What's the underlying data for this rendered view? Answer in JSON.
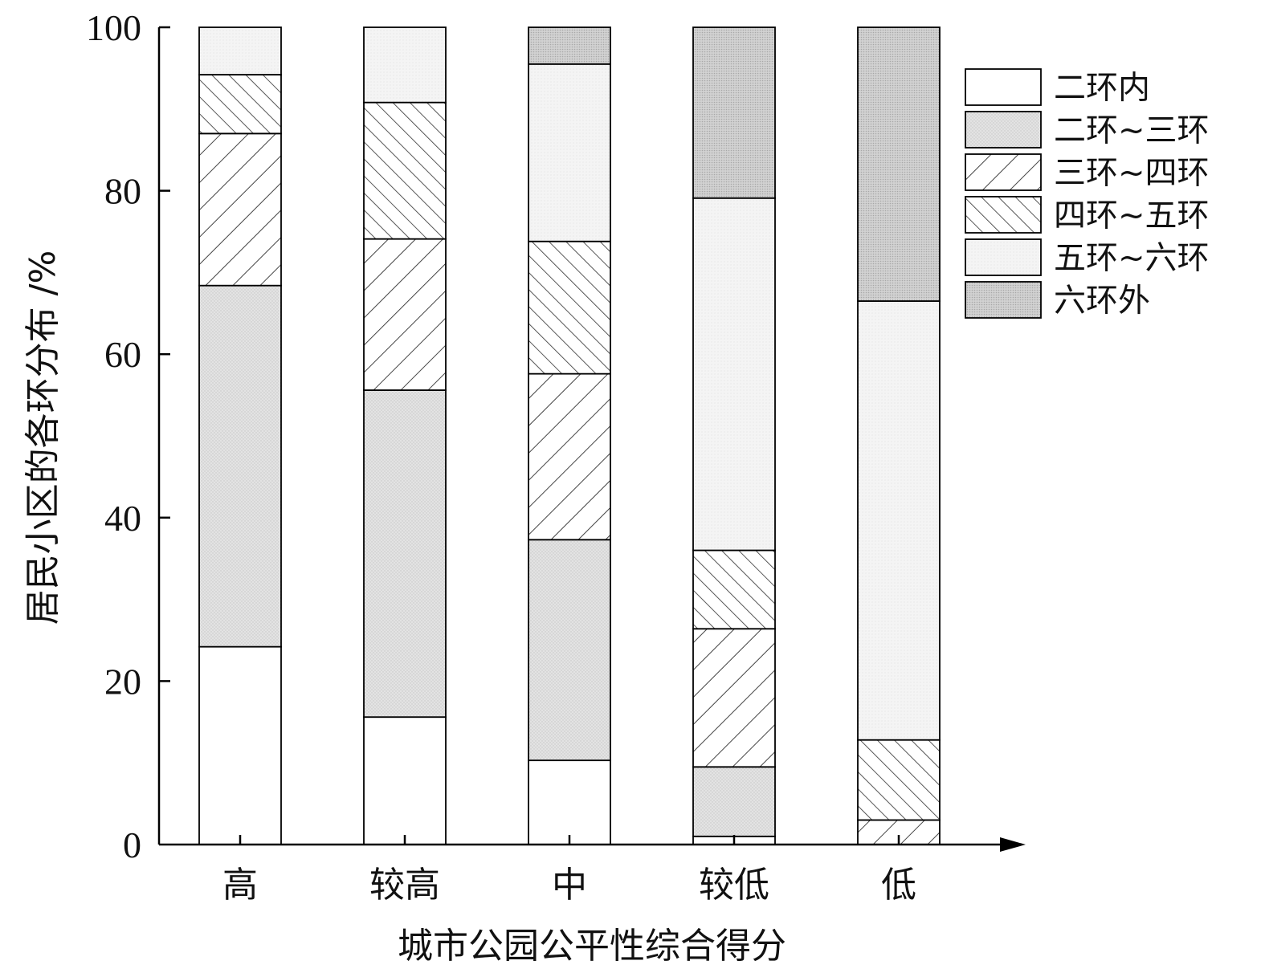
{
  "chart_data": {
    "type": "bar",
    "stacked": true,
    "xlabel": "城市公园公平性综合得分",
    "ylabel": "居民小区的各环分布 /%",
    "ylim": [
      0,
      100
    ],
    "yticks": [
      0,
      20,
      40,
      60,
      80,
      100
    ],
    "grid": false,
    "legend_position": "right",
    "categories": [
      "高",
      "较高",
      "中",
      "较低",
      "低"
    ],
    "series": [
      {
        "name": "二环内",
        "values": [
          24.2,
          15.6,
          10.3,
          1.0,
          0.0
        ]
      },
      {
        "name": "二环~三环",
        "values": [
          44.2,
          40.0,
          27.0,
          8.5,
          0.0
        ]
      },
      {
        "name": "三环~四环",
        "values": [
          18.6,
          18.5,
          20.3,
          16.9,
          3.0
        ]
      },
      {
        "name": "四环~五环",
        "values": [
          7.2,
          16.7,
          16.2,
          9.6,
          9.8
        ]
      },
      {
        "name": "五环~六环",
        "values": [
          5.8,
          9.2,
          21.7,
          43.1,
          53.7
        ]
      },
      {
        "name": "六环外",
        "values": [
          0.0,
          0.0,
          4.5,
          20.9,
          33.5
        ]
      }
    ]
  }
}
